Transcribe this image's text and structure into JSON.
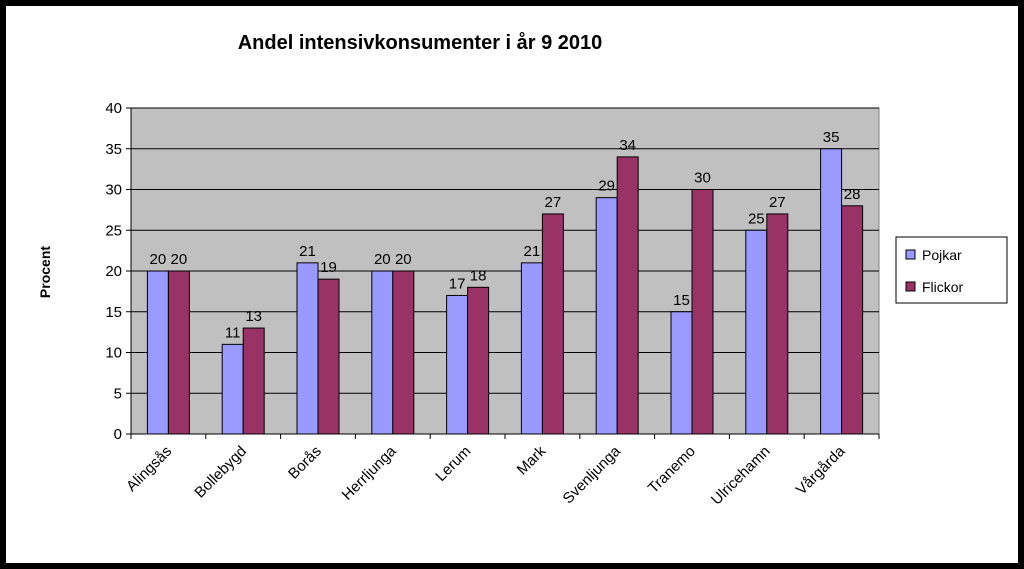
{
  "chart_data": {
    "type": "bar",
    "title": "Andel intensivkonsumenter i år 9 2010",
    "xlabel": "",
    "ylabel": "Procent",
    "ylim": [
      0,
      40
    ],
    "yticks": [
      0,
      5,
      10,
      15,
      20,
      25,
      30,
      35,
      40
    ],
    "grid": true,
    "legend_position": "right",
    "categories": [
      "Alingsås",
      "Bollebygd",
      "Borås",
      "Herrljunga",
      "Lerum",
      "Mark",
      "Svenljunga",
      "Tranemo",
      "Ulricehamn",
      "Vårgårda"
    ],
    "series": [
      {
        "name": "Pojkar",
        "color": "#9999FF",
        "values": [
          20,
          11,
          21,
          20,
          17,
          21,
          29,
          15,
          25,
          35
        ]
      },
      {
        "name": "Flickor",
        "color": "#993366",
        "values": [
          20,
          13,
          19,
          20,
          18,
          27,
          34,
          30,
          27,
          28
        ]
      }
    ],
    "plot_background": "#C0C0C0"
  }
}
